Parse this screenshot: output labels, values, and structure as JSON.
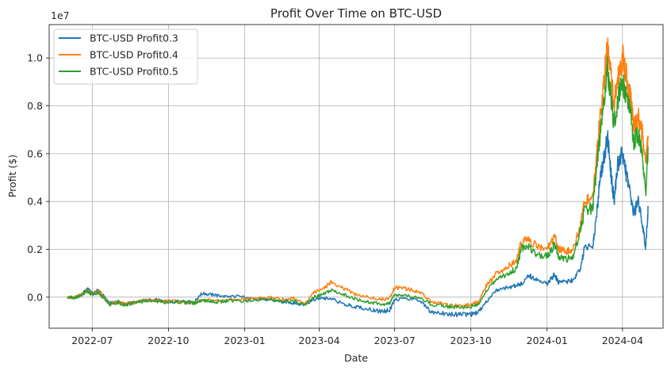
{
  "chart_data": {
    "type": "line",
    "title": "Profit Over Time on BTC-USD",
    "xlabel": "Date",
    "ylabel": "Profit ($)",
    "y_multiplier_label": "1e7",
    "y_scale": 10000000,
    "xlim": [
      "2022-05-10",
      "2024-05-20"
    ],
    "ylim": [
      -1.3,
      11.4
    ],
    "x_ticks": [
      {
        "date": "2022-07-01",
        "label": "2022-07"
      },
      {
        "date": "2022-10-01",
        "label": "2022-10"
      },
      {
        "date": "2023-01-01",
        "label": "2023-01"
      },
      {
        "date": "2023-04-01",
        "label": "2023-04"
      },
      {
        "date": "2023-07-01",
        "label": "2023-07"
      },
      {
        "date": "2023-10-01",
        "label": "2023-10"
      },
      {
        "date": "2024-01-01",
        "label": "2024-01"
      },
      {
        "date": "2024-04-01",
        "label": "2024-04"
      }
    ],
    "y_ticks": [
      {
        "value": 0,
        "label": "0.0"
      },
      {
        "value": 2,
        "label": "0.2"
      },
      {
        "value": 4,
        "label": "0.4"
      },
      {
        "value": 6,
        "label": "0.6"
      },
      {
        "value": 8,
        "label": "0.8"
      },
      {
        "value": 10,
        "label": "1.0"
      }
    ],
    "grid": true,
    "legend_position": "top-left",
    "series": [
      {
        "name": "BTC-USD Profit0.3",
        "color": "#1f77b4",
        "points": [
          [
            "2022-06-01",
            0.0
          ],
          [
            "2022-06-10",
            -0.02
          ],
          [
            "2022-06-18",
            0.12
          ],
          [
            "2022-06-25",
            0.35
          ],
          [
            "2022-07-01",
            0.15
          ],
          [
            "2022-07-08",
            0.28
          ],
          [
            "2022-07-15",
            0.05
          ],
          [
            "2022-07-22",
            -0.25
          ],
          [
            "2022-08-01",
            -0.18
          ],
          [
            "2022-08-10",
            -0.32
          ],
          [
            "2022-08-20",
            -0.2
          ],
          [
            "2022-09-01",
            -0.15
          ],
          [
            "2022-09-15",
            -0.1
          ],
          [
            "2022-09-25",
            -0.18
          ],
          [
            "2022-10-05",
            -0.2
          ],
          [
            "2022-10-20",
            -0.18
          ],
          [
            "2022-11-01",
            -0.22
          ],
          [
            "2022-11-10",
            0.15
          ],
          [
            "2022-11-20",
            0.12
          ],
          [
            "2022-12-01",
            0.05
          ],
          [
            "2022-12-15",
            0.05
          ],
          [
            "2023-01-01",
            0.0
          ],
          [
            "2023-01-15",
            -0.05
          ],
          [
            "2023-02-01",
            -0.15
          ],
          [
            "2023-02-15",
            -0.2
          ],
          [
            "2023-03-01",
            -0.25
          ],
          [
            "2023-03-15",
            -0.3
          ],
          [
            "2023-03-25",
            -0.1
          ],
          [
            "2023-04-05",
            -0.05
          ],
          [
            "2023-04-15",
            -0.05
          ],
          [
            "2023-05-01",
            -0.3
          ],
          [
            "2023-05-15",
            -0.4
          ],
          [
            "2023-06-01",
            -0.5
          ],
          [
            "2023-06-15",
            -0.6
          ],
          [
            "2023-06-25",
            -0.55
          ],
          [
            "2023-07-01",
            -0.1
          ],
          [
            "2023-07-15",
            -0.05
          ],
          [
            "2023-08-01",
            -0.15
          ],
          [
            "2023-08-15",
            -0.65
          ],
          [
            "2023-09-01",
            -0.7
          ],
          [
            "2023-09-15",
            -0.72
          ],
          [
            "2023-10-01",
            -0.72
          ],
          [
            "2023-10-10",
            -0.65
          ],
          [
            "2023-10-20",
            -0.2
          ],
          [
            "2023-11-01",
            0.3
          ],
          [
            "2023-11-15",
            0.4
          ],
          [
            "2023-11-25",
            0.5
          ],
          [
            "2023-12-01",
            0.55
          ],
          [
            "2023-12-10",
            0.9
          ],
          [
            "2023-12-20",
            0.7
          ],
          [
            "2024-01-01",
            0.55
          ],
          [
            "2024-01-10",
            0.95
          ],
          [
            "2024-01-15",
            0.6
          ],
          [
            "2024-01-25",
            0.65
          ],
          [
            "2024-02-01",
            0.7
          ],
          [
            "2024-02-10",
            1.2
          ],
          [
            "2024-02-15",
            2.0
          ],
          [
            "2024-02-25",
            2.1
          ],
          [
            "2024-03-01",
            3.5
          ],
          [
            "2024-03-05",
            5.0
          ],
          [
            "2024-03-10",
            5.8
          ],
          [
            "2024-03-14",
            6.8
          ],
          [
            "2024-03-18",
            5.2
          ],
          [
            "2024-03-22",
            4.0
          ],
          [
            "2024-03-26",
            5.5
          ],
          [
            "2024-04-01",
            6.0
          ],
          [
            "2024-04-05",
            5.2
          ],
          [
            "2024-04-10",
            4.5
          ],
          [
            "2024-04-15",
            3.4
          ],
          [
            "2024-04-20",
            4.1
          ],
          [
            "2024-04-25",
            3.0
          ],
          [
            "2024-04-29",
            2.1
          ],
          [
            "2024-05-02",
            3.7
          ]
        ]
      },
      {
        "name": "BTC-USD Profit0.4",
        "color": "#ff7f0e",
        "points": [
          [
            "2022-06-01",
            0.0
          ],
          [
            "2022-06-10",
            -0.02
          ],
          [
            "2022-06-18",
            0.1
          ],
          [
            "2022-06-25",
            0.3
          ],
          [
            "2022-07-01",
            0.12
          ],
          [
            "2022-07-08",
            0.25
          ],
          [
            "2022-07-15",
            0.0
          ],
          [
            "2022-07-22",
            -0.28
          ],
          [
            "2022-08-01",
            -0.22
          ],
          [
            "2022-08-10",
            -0.3
          ],
          [
            "2022-08-20",
            -0.22
          ],
          [
            "2022-09-01",
            -0.15
          ],
          [
            "2022-09-15",
            -0.12
          ],
          [
            "2022-09-25",
            -0.2
          ],
          [
            "2022-10-05",
            -0.15
          ],
          [
            "2022-10-20",
            -0.2
          ],
          [
            "2022-11-01",
            -0.25
          ],
          [
            "2022-11-10",
            -0.1
          ],
          [
            "2022-11-20",
            -0.12
          ],
          [
            "2022-12-01",
            -0.15
          ],
          [
            "2022-12-15",
            -0.1
          ],
          [
            "2023-01-01",
            -0.1
          ],
          [
            "2023-01-15",
            -0.05
          ],
          [
            "2023-02-01",
            0.0
          ],
          [
            "2023-02-15",
            -0.1
          ],
          [
            "2023-03-01",
            -0.05
          ],
          [
            "2023-03-15",
            -0.3
          ],
          [
            "2023-03-25",
            0.2
          ],
          [
            "2023-04-05",
            0.3
          ],
          [
            "2023-04-15",
            0.6
          ],
          [
            "2023-05-01",
            0.35
          ],
          [
            "2023-05-15",
            0.1
          ],
          [
            "2023-06-01",
            0.0
          ],
          [
            "2023-06-15",
            -0.1
          ],
          [
            "2023-06-25",
            -0.05
          ],
          [
            "2023-07-01",
            0.4
          ],
          [
            "2023-07-15",
            0.35
          ],
          [
            "2023-08-01",
            0.2
          ],
          [
            "2023-08-15",
            -0.2
          ],
          [
            "2023-09-01",
            -0.3
          ],
          [
            "2023-09-15",
            -0.35
          ],
          [
            "2023-10-01",
            -0.3
          ],
          [
            "2023-10-10",
            -0.2
          ],
          [
            "2023-10-20",
            0.5
          ],
          [
            "2023-11-01",
            1.0
          ],
          [
            "2023-11-15",
            1.3
          ],
          [
            "2023-11-25",
            1.5
          ],
          [
            "2023-12-01",
            2.3
          ],
          [
            "2023-12-10",
            2.4
          ],
          [
            "2023-12-20",
            2.1
          ],
          [
            "2024-01-01",
            2.0
          ],
          [
            "2024-01-10",
            2.5
          ],
          [
            "2024-01-15",
            2.0
          ],
          [
            "2024-01-25",
            1.9
          ],
          [
            "2024-02-01",
            2.0
          ],
          [
            "2024-02-10",
            3.0
          ],
          [
            "2024-02-15",
            4.0
          ],
          [
            "2024-02-25",
            4.1
          ],
          [
            "2024-03-01",
            6.0
          ],
          [
            "2024-03-05",
            7.5
          ],
          [
            "2024-03-10",
            9.0
          ],
          [
            "2024-03-14",
            10.6
          ],
          [
            "2024-03-18",
            9.2
          ],
          [
            "2024-03-22",
            8.0
          ],
          [
            "2024-03-26",
            9.0
          ],
          [
            "2024-04-01",
            10.0
          ],
          [
            "2024-04-05",
            9.5
          ],
          [
            "2024-04-10",
            8.5
          ],
          [
            "2024-04-15",
            7.2
          ],
          [
            "2024-04-20",
            7.5
          ],
          [
            "2024-04-25",
            6.8
          ],
          [
            "2024-04-29",
            5.6
          ],
          [
            "2024-05-02",
            6.6
          ]
        ]
      },
      {
        "name": "BTC-USD Profit0.5",
        "color": "#2ca02c",
        "points": [
          [
            "2022-06-01",
            0.0
          ],
          [
            "2022-06-10",
            -0.03
          ],
          [
            "2022-06-18",
            0.08
          ],
          [
            "2022-06-25",
            0.25
          ],
          [
            "2022-07-01",
            0.1
          ],
          [
            "2022-07-08",
            0.2
          ],
          [
            "2022-07-15",
            -0.05
          ],
          [
            "2022-07-22",
            -0.3
          ],
          [
            "2022-08-01",
            -0.25
          ],
          [
            "2022-08-10",
            -0.32
          ],
          [
            "2022-08-20",
            -0.25
          ],
          [
            "2022-09-01",
            -0.18
          ],
          [
            "2022-09-15",
            -0.15
          ],
          [
            "2022-09-25",
            -0.22
          ],
          [
            "2022-10-05",
            -0.18
          ],
          [
            "2022-10-20",
            -0.22
          ],
          [
            "2022-11-01",
            -0.25
          ],
          [
            "2022-11-10",
            -0.15
          ],
          [
            "2022-11-20",
            -0.18
          ],
          [
            "2022-12-01",
            -0.2
          ],
          [
            "2022-12-15",
            -0.15
          ],
          [
            "2023-01-01",
            -0.15
          ],
          [
            "2023-01-15",
            -0.12
          ],
          [
            "2023-02-01",
            -0.1
          ],
          [
            "2023-02-15",
            -0.18
          ],
          [
            "2023-03-01",
            -0.15
          ],
          [
            "2023-03-15",
            -0.35
          ],
          [
            "2023-03-25",
            0.0
          ],
          [
            "2023-04-05",
            0.1
          ],
          [
            "2023-04-15",
            0.3
          ],
          [
            "2023-05-01",
            0.1
          ],
          [
            "2023-05-15",
            -0.1
          ],
          [
            "2023-06-01",
            -0.2
          ],
          [
            "2023-06-15",
            -0.3
          ],
          [
            "2023-06-25",
            -0.25
          ],
          [
            "2023-07-01",
            0.1
          ],
          [
            "2023-07-15",
            0.05
          ],
          [
            "2023-08-01",
            -0.05
          ],
          [
            "2023-08-15",
            -0.3
          ],
          [
            "2023-09-01",
            -0.38
          ],
          [
            "2023-09-15",
            -0.42
          ],
          [
            "2023-10-01",
            -0.4
          ],
          [
            "2023-10-10",
            -0.3
          ],
          [
            "2023-10-20",
            0.3
          ],
          [
            "2023-11-01",
            0.7
          ],
          [
            "2023-11-15",
            1.0
          ],
          [
            "2023-11-25",
            1.2
          ],
          [
            "2023-12-01",
            2.0
          ],
          [
            "2023-12-10",
            2.1
          ],
          [
            "2023-12-20",
            1.8
          ],
          [
            "2024-01-01",
            1.7
          ],
          [
            "2024-01-10",
            2.2
          ],
          [
            "2024-01-15",
            1.7
          ],
          [
            "2024-01-25",
            1.6
          ],
          [
            "2024-02-01",
            1.7
          ],
          [
            "2024-02-10",
            2.7
          ],
          [
            "2024-02-15",
            3.6
          ],
          [
            "2024-02-25",
            3.7
          ],
          [
            "2024-03-01",
            5.5
          ],
          [
            "2024-03-05",
            6.8
          ],
          [
            "2024-03-10",
            8.2
          ],
          [
            "2024-03-14",
            9.5
          ],
          [
            "2024-03-18",
            8.4
          ],
          [
            "2024-03-22",
            7.2
          ],
          [
            "2024-03-26",
            8.2
          ],
          [
            "2024-04-01",
            9.0
          ],
          [
            "2024-04-05",
            8.6
          ],
          [
            "2024-04-10",
            7.8
          ],
          [
            "2024-04-15",
            6.5
          ],
          [
            "2024-04-20",
            6.8
          ],
          [
            "2024-04-25",
            6.0
          ],
          [
            "2024-04-29",
            4.4
          ],
          [
            "2024-05-02",
            6.3
          ]
        ]
      }
    ]
  }
}
